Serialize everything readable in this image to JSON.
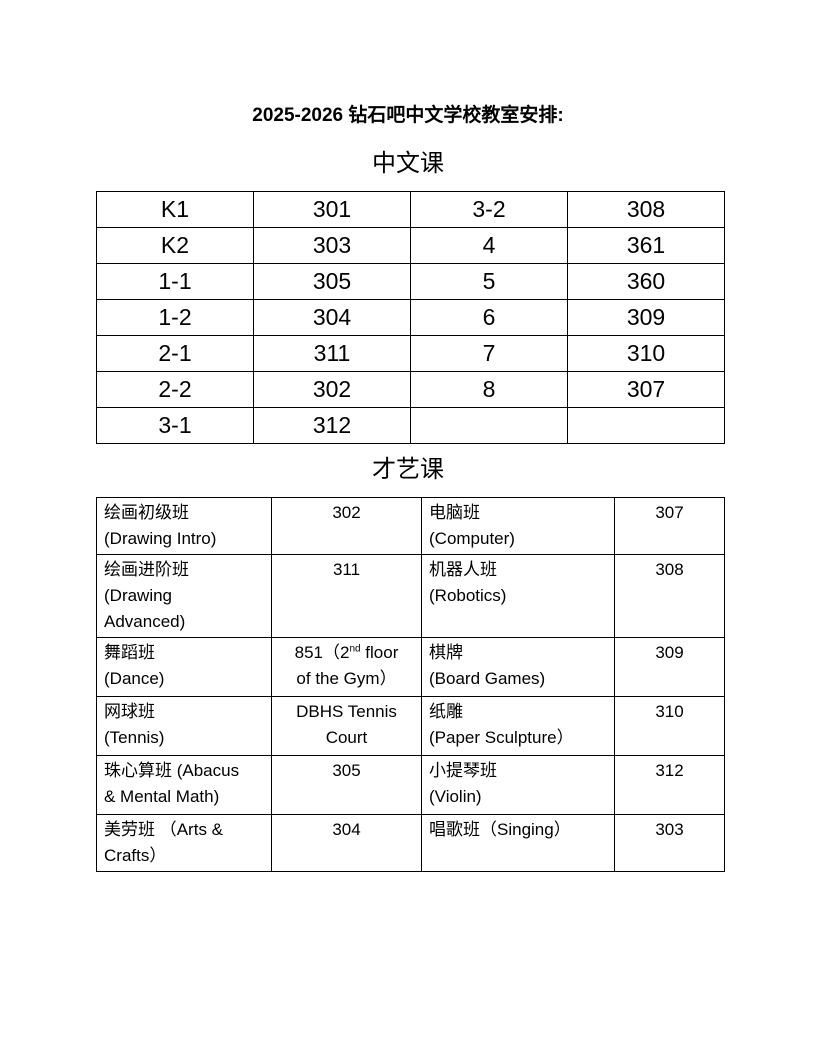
{
  "title": "2025-2026 钻石吧中文学校教室安排:",
  "chinese_section": {
    "heading": "中文课",
    "rows": [
      [
        "K1",
        "301",
        "3-2",
        "308"
      ],
      [
        "K2",
        "303",
        "4",
        "361"
      ],
      [
        "1-1",
        "305",
        "5",
        "360"
      ],
      [
        "1-2",
        "304",
        "6",
        "309"
      ],
      [
        "2-1",
        "311",
        "7",
        "310"
      ],
      [
        "2-2",
        "302",
        "8",
        "307"
      ],
      [
        "3-1",
        "312",
        "",
        ""
      ]
    ]
  },
  "arts_section": {
    "heading": "才艺课",
    "rows": [
      [
        {
          "l1": "绘画初级班",
          "l2": "(Drawing Intro)",
          "l3": ""
        },
        {
          "l1": "302",
          "l2": ""
        },
        {
          "l1": "电脑班",
          "l2": "(Computer)",
          "l3": ""
        },
        {
          "l1": "307",
          "l2": ""
        }
      ],
      [
        {
          "l1": "绘画进阶班",
          "l2": "(Drawing",
          "l3": "Advanced)"
        },
        {
          "l1": "311",
          "l2": ""
        },
        {
          "l1": "机器人班",
          "l2": "(Robotics)",
          "l3": ""
        },
        {
          "l1": "308",
          "l2": ""
        }
      ],
      [
        {
          "l1": "舞蹈班",
          "l2": "(Dance)",
          "l3": ""
        },
        {
          "l1": "851（2",
          "sup": "nd",
          "l1b": " floor",
          "l2": "of the Gym）"
        },
        {
          "l1": "棋牌",
          "l2": "(Board Games)",
          "l3": ""
        },
        {
          "l1": "309",
          "l2": ""
        }
      ],
      [
        {
          "l1": "网球班",
          "l2": "(Tennis)",
          "l3": ""
        },
        {
          "l1": "DBHS Tennis",
          "l2": "Court"
        },
        {
          "l1": "纸雕",
          "l2": "(Paper Sculpture）",
          "l3": ""
        },
        {
          "l1": "310",
          "l2": ""
        }
      ],
      [
        {
          "l1": "珠心算班 (Abacus",
          "l2": "& Mental Math)",
          "l3": ""
        },
        {
          "l1": "305",
          "l2": ""
        },
        {
          "l1": "小提琴班",
          "l2": "(Violin)",
          "l3": ""
        },
        {
          "l1": "312",
          "l2": ""
        }
      ],
      [
        {
          "l1": "美劳班 （Arts &",
          "l2": "Crafts）",
          "l3": ""
        },
        {
          "l1": "304",
          "l2": ""
        },
        {
          "l1": "唱歌班（Singing）",
          "l2": "",
          "l3": ""
        },
        {
          "l1": "303",
          "l2": ""
        }
      ]
    ]
  }
}
